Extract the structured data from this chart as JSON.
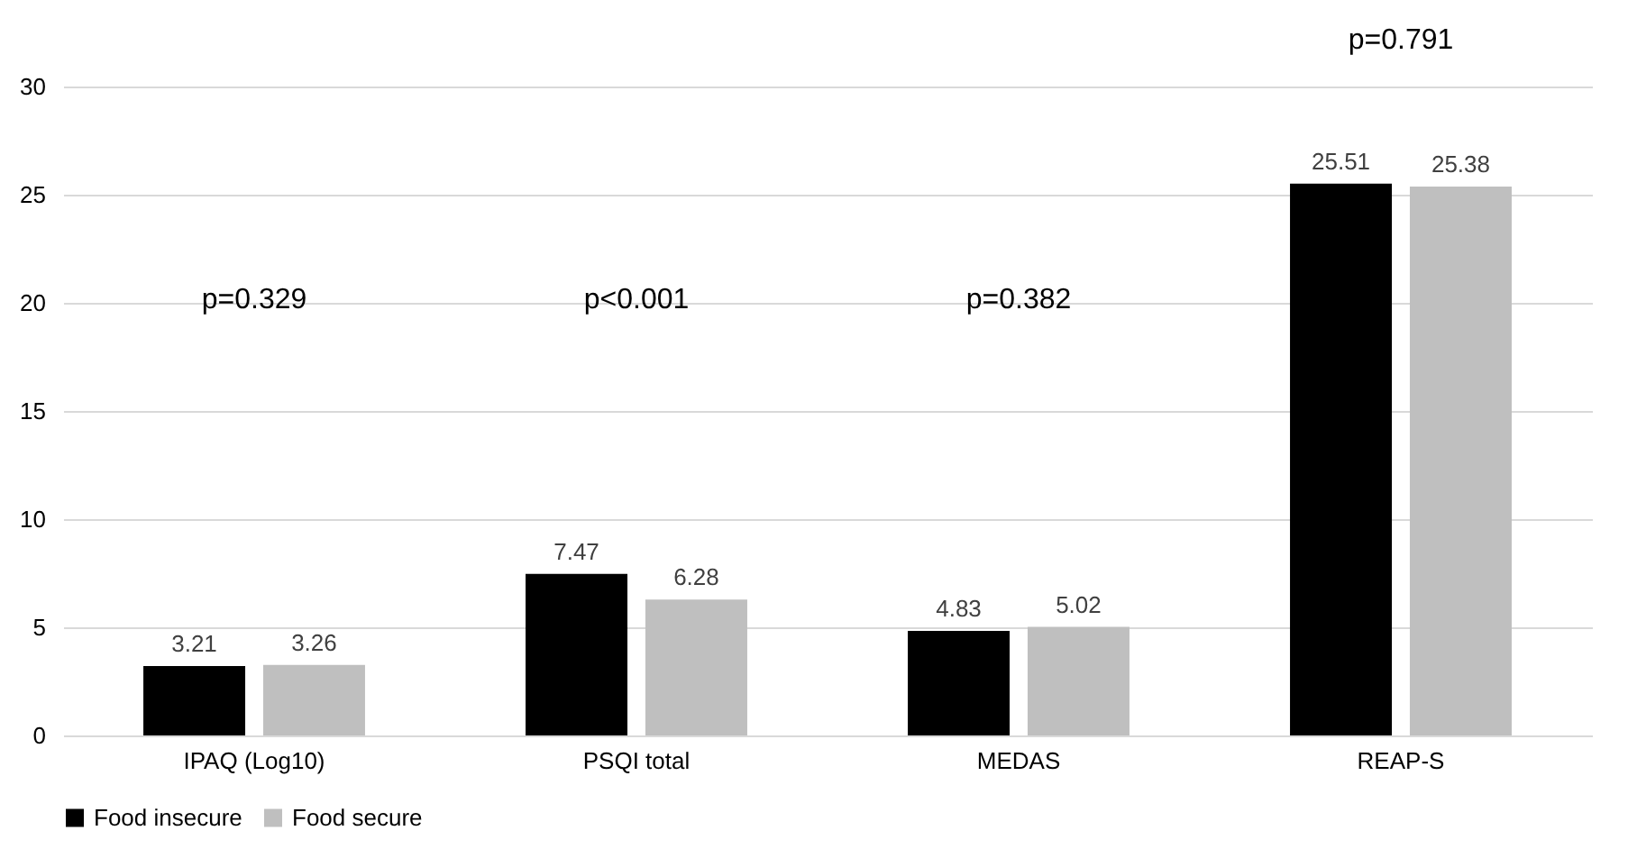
{
  "chart_data": {
    "type": "bar",
    "categories": [
      "IPAQ (Log10)",
      "PSQI total",
      "MEDAS",
      "REAP-S"
    ],
    "series": [
      {
        "name": "Food insecure",
        "color": "#000000",
        "values": [
          3.21,
          7.47,
          4.83,
          25.51
        ]
      },
      {
        "name": "Food secure",
        "color": "#bfbfbf",
        "values": [
          3.26,
          6.28,
          5.02,
          25.38
        ]
      }
    ],
    "ylim": [
      0,
      30
    ],
    "yticks": [
      0,
      5,
      10,
      15,
      20,
      25,
      30
    ],
    "grid": "y",
    "legend": "bottom",
    "data_labels": true,
    "annotations": [
      "p=0.329",
      "p<0.001",
      "p=0.382",
      "p=0.791"
    ]
  }
}
